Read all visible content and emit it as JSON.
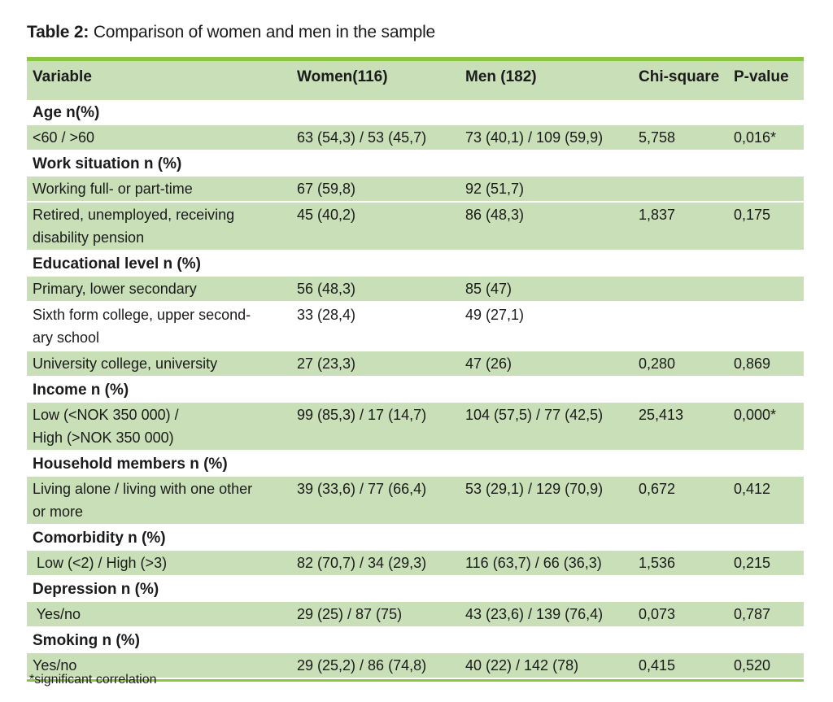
{
  "title": {
    "prefix": "Table 2:",
    "text": " Comparison of women and men in the sample"
  },
  "colors": {
    "accent_green": "#8CC63F",
    "row_green": "#C9DFB8",
    "page_background": "#ffffff",
    "text": "#1b1b1b"
  },
  "table": {
    "columns": [
      "Variable",
      "Women(116)",
      "Men (182)",
      "Chi-square",
      "P-value"
    ],
    "rows": [
      {
        "type": "section",
        "label": "Age n(%)"
      },
      {
        "type": "data",
        "bg": "green",
        "label": "<60 / >60",
        "women": "63 (54,3) / 53 (45,7)",
        "men": "73 (40,1) / 109 (59,9)",
        "chi": "5,758",
        "p": "0,016*"
      },
      {
        "type": "section",
        "label": "Work situation n (%)"
      },
      {
        "type": "data",
        "bg": "green",
        "label": "Working full- or part-time",
        "women": "67 (59,8)",
        "men": "92 (51,7)",
        "chi": "",
        "p": ""
      },
      {
        "type": "data",
        "bg": "green",
        "label": "Retired, unemployed, receiving\ndisability pension",
        "women": "45 (40,2)",
        "men": "86 (48,3)",
        "chi": "1,837",
        "p": "0,175"
      },
      {
        "type": "section",
        "label": "Educational level n (%)"
      },
      {
        "type": "data",
        "bg": "green",
        "label": "Primary, lower secondary",
        "women": "56 (48,3)",
        "men": "85 (47)",
        "chi": "",
        "p": ""
      },
      {
        "type": "data",
        "bg": "white",
        "label": "Sixth form college, upper second-\nary school",
        "women": "33 (28,4)",
        "men": "49 (27,1)",
        "chi": "",
        "p": ""
      },
      {
        "type": "data",
        "bg": "green",
        "label": "University college, university",
        "women": "27 (23,3)",
        "men": "47 (26)",
        "chi": "0,280",
        "p": "0,869"
      },
      {
        "type": "section",
        "label": "Income n (%)"
      },
      {
        "type": "data",
        "bg": "green",
        "label": "Low (<NOK 350 000) /\nHigh (>NOK 350 000)",
        "women": "99 (85,3) / 17 (14,7)",
        "men": "104 (57,5) / 77 (42,5)",
        "chi": "25,413",
        "p": "0,000*"
      },
      {
        "type": "section",
        "label": "Household members n (%)"
      },
      {
        "type": "data",
        "bg": "green",
        "label": "Living alone / living with one other\nor more",
        "women": "39 (33,6) / 77 (66,4)",
        "men": "53 (29,1) / 129 (70,9)",
        "chi": "0,672",
        "p": "0,412"
      },
      {
        "type": "section",
        "label": "Comorbidity n (%)"
      },
      {
        "type": "data",
        "bg": "green",
        "label": " Low (<2) / High (>3)",
        "women": "82 (70,7) / 34 (29,3)",
        "men": "116 (63,7) / 66 (36,3)",
        "chi": "1,536",
        "p": "0,215"
      },
      {
        "type": "section",
        "label": "Depression n (%)"
      },
      {
        "type": "data",
        "bg": "green",
        "label": " Yes/no",
        "women": "29 (25) / 87 (75)",
        "men": "43 (23,6) / 139 (76,4)",
        "chi": "0,073",
        "p": "0,787"
      },
      {
        "type": "section",
        "label": "Smoking n (%)"
      },
      {
        "type": "data",
        "bg": "green",
        "label": "Yes/no",
        "women": "29 (25,2) / 86 (74,8)",
        "men": "40 (22) / 142 (78)",
        "chi": "0,415",
        "p": "0,520"
      }
    ]
  },
  "footnote": "*significant correlation"
}
